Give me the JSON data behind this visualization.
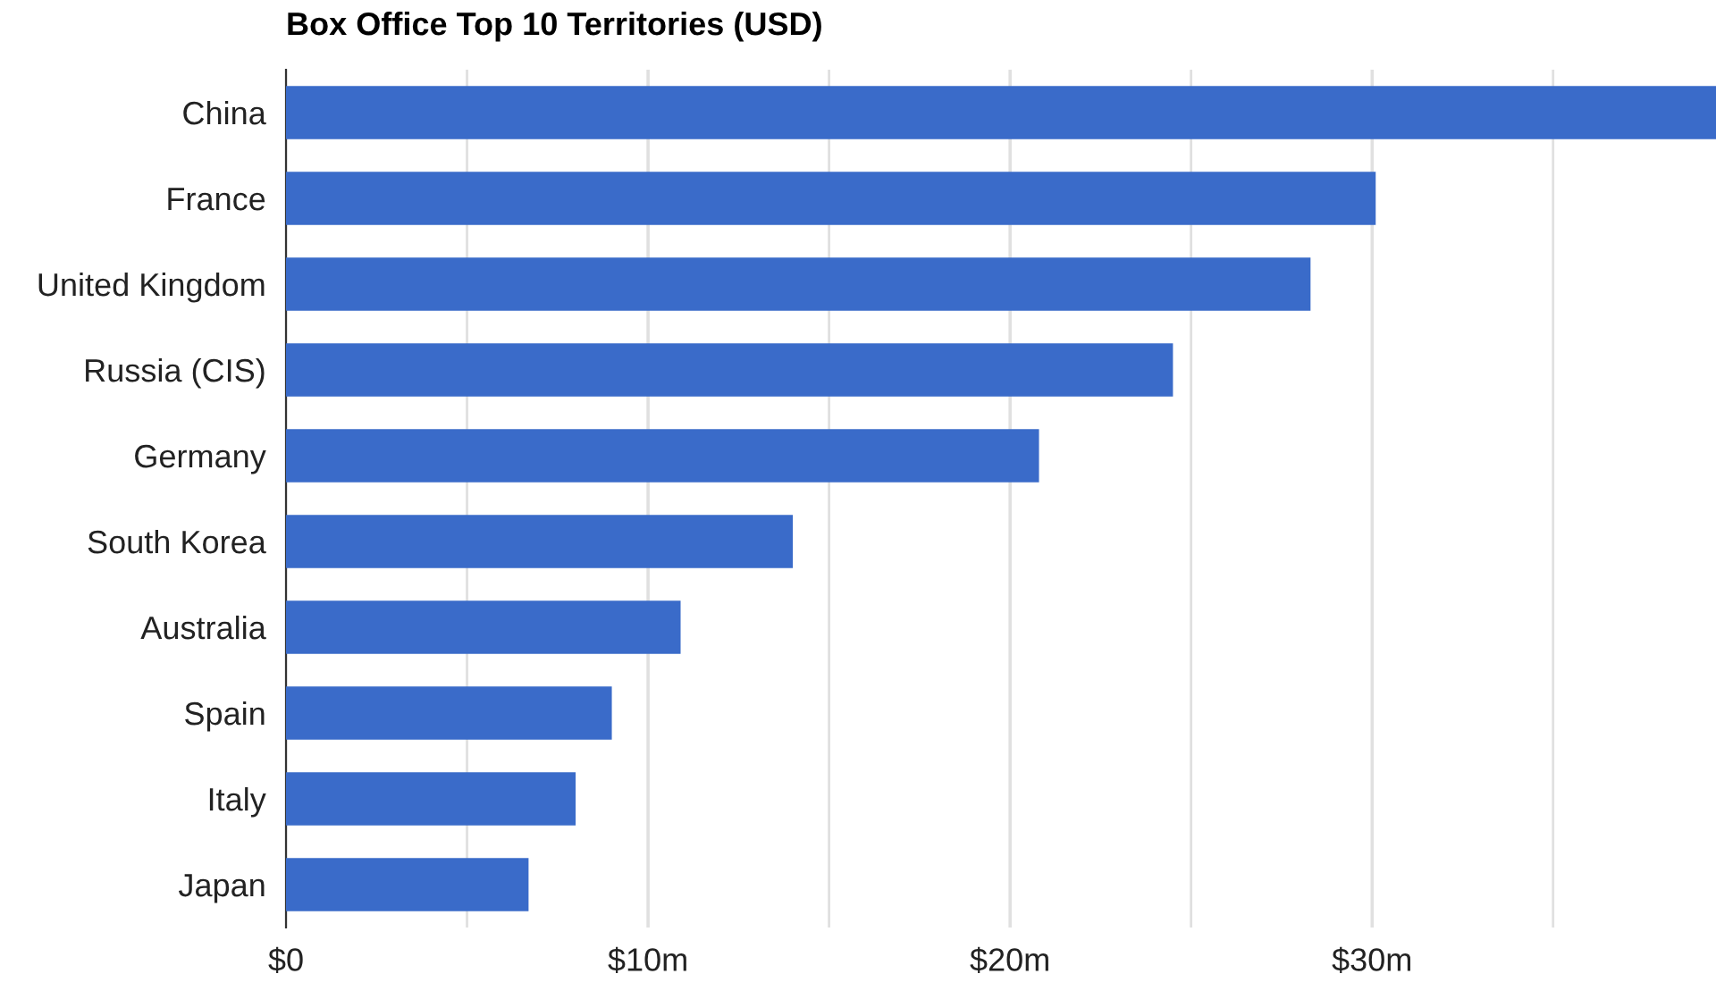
{
  "chart_data": {
    "type": "bar",
    "orientation": "horizontal",
    "title": "Box Office Top 10 Territories (USD)",
    "categories": [
      "China",
      "France",
      "United Kingdom",
      "Russia (CIS)",
      "Germany",
      "South Korea",
      "Australia",
      "Spain",
      "Italy",
      "Japan"
    ],
    "values": [
      39.5,
      30.1,
      28.3,
      24.5,
      20.8,
      14.0,
      10.9,
      9.0,
      8.0,
      6.7
    ],
    "color": "#3a6bc9",
    "xlim": [
      0,
      39.5
    ],
    "xticks": [
      {
        "value": 0,
        "label": "$0"
      },
      {
        "value": 5,
        "label": null
      },
      {
        "value": 10,
        "label": "$10m"
      },
      {
        "value": 15,
        "label": null
      },
      {
        "value": 20,
        "label": "$20m"
      },
      {
        "value": 25,
        "label": null
      },
      {
        "value": 30,
        "label": "$30m"
      },
      {
        "value": 35,
        "label": null
      }
    ],
    "grid": "x",
    "legend": false
  }
}
